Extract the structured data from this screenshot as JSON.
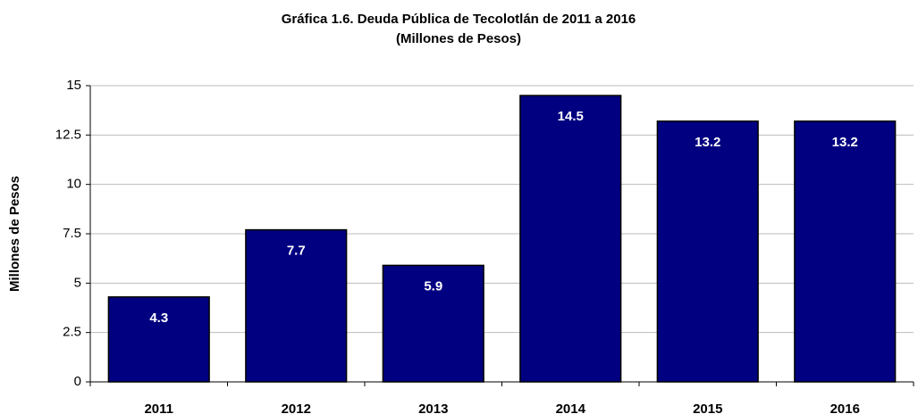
{
  "chart_data": {
    "type": "bar",
    "title": "Gráfica 1.6. Deuda Pública de Tecolotlán de 2011 a 2016",
    "subtitle": "(Millones de Pesos)",
    "y_label": "Millones de Pesos",
    "categories": [
      "2011",
      "2012",
      "2013",
      "2014",
      "2015",
      "2016"
    ],
    "values": [
      4.3,
      7.7,
      5.9,
      14.5,
      13.2,
      13.2
    ],
    "color": "#000080",
    "ylim": [
      0,
      15
    ],
    "yticks": [
      0,
      2.5,
      5,
      7.5,
      10,
      12.5,
      15
    ],
    "grid": true
  }
}
